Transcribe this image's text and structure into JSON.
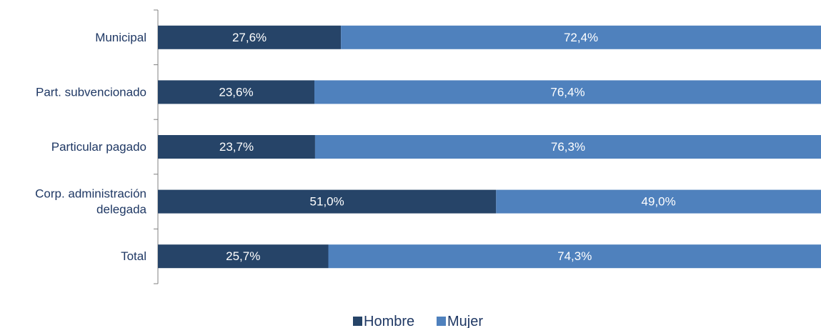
{
  "chart_data": {
    "type": "bar",
    "orientation": "horizontal",
    "stacked": "percent",
    "categories": [
      [
        "Municipal"
      ],
      [
        "Part. subvencionado"
      ],
      [
        "Particular pagado"
      ],
      [
        "Corp. administración",
        "delegada"
      ],
      [
        "Total"
      ]
    ],
    "series": [
      {
        "name": "Hombre",
        "color": "#264468",
        "values": [
          27.6,
          23.6,
          23.7,
          51.0,
          25.7
        ],
        "labels": [
          "27,6%",
          "23,6%",
          "23,7%",
          "51,0%",
          "25,7%"
        ]
      },
      {
        "name": "Mujer",
        "color": "#4f81bd",
        "values": [
          72.4,
          76.4,
          76.3,
          49.0,
          74.3
        ],
        "labels": [
          "72,4%",
          "76,4%",
          "76,3%",
          "49,0%",
          "74,3%"
        ]
      }
    ],
    "xlim": [
      0,
      100
    ],
    "grid": false,
    "legend_position": "bottom"
  }
}
